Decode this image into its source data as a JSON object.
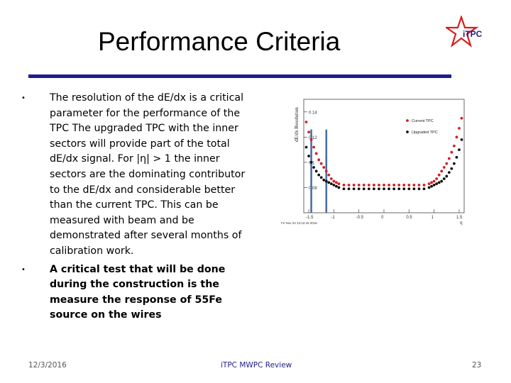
{
  "slide": {
    "title": "Performance Criteria",
    "logo_text": "iTPC",
    "bullets": [
      {
        "marker": "•",
        "text": "The resolution of the dE/dx is a critical parameter for the performance of the TPC The upgraded TPC with the inner sectors will provide part of the total dE/dx signal. For |η| > 1 the inner sectors are the dominating contributor to the dE/dx and considerable better than the current TPC. This can be measured with beam and be demonstrated after several months of calibration work."
      },
      {
        "marker": "•",
        "text": "A critical test that will be done during the construction is the measure the response of 55Fe source on the wires"
      }
    ],
    "footer": {
      "date": "12/3/2016",
      "center": "iTPC MWPC Review",
      "page": "23"
    }
  },
  "colors": {
    "accent": "#1f1f8c",
    "logo_red": "#d81e1e",
    "current_series": "#d11f1f",
    "upgraded_series": "#111111",
    "marker_line": "#4a6fa5"
  },
  "chart_data": {
    "type": "scatter",
    "title": "",
    "xlabel": "",
    "ylabel": "dE/dx Resolution",
    "xlim": [
      -1.6,
      1.6
    ],
    "ylim": [
      0.06,
      0.15
    ],
    "yticks": [
      "0.08",
      "0.1",
      "0.12",
      "0.14"
    ],
    "xticks": [
      "-1.5",
      "-1",
      "-0.5",
      "0",
      "0.5",
      "1",
      "1.5"
    ],
    "timestamp": "Fri Nov 24 13:12:18 2016",
    "corner_label": "η",
    "series": [
      {
        "name": "Current TPC",
        "color": "#d11f1f",
        "x": [
          -1.55,
          -1.5,
          -1.45,
          -1.4,
          -1.35,
          -1.3,
          -1.25,
          -1.2,
          -1.15,
          -1.1,
          -1.05,
          -1.0,
          -0.95,
          -0.9,
          -0.8,
          -0.7,
          -0.6,
          -0.5,
          -0.4,
          -0.3,
          -0.2,
          -0.1,
          0.0,
          0.1,
          0.2,
          0.3,
          0.4,
          0.5,
          0.6,
          0.7,
          0.8,
          0.9,
          0.95,
          1.0,
          1.05,
          1.1,
          1.15,
          1.2,
          1.25,
          1.3,
          1.35,
          1.4,
          1.45,
          1.5,
          1.55
        ],
        "y": [
          0.132,
          0.124,
          0.118,
          0.112,
          0.107,
          0.102,
          0.099,
          0.096,
          0.093,
          0.09,
          0.087,
          0.085,
          0.084,
          0.083,
          0.082,
          0.082,
          0.082,
          0.082,
          0.082,
          0.082,
          0.082,
          0.082,
          0.082,
          0.082,
          0.082,
          0.082,
          0.082,
          0.082,
          0.082,
          0.082,
          0.082,
          0.083,
          0.084,
          0.085,
          0.087,
          0.09,
          0.093,
          0.096,
          0.099,
          0.103,
          0.108,
          0.113,
          0.12,
          0.127,
          0.135
        ]
      },
      {
        "name": "Upgraded TPC",
        "color": "#111111",
        "x": [
          -1.55,
          -1.5,
          -1.45,
          -1.4,
          -1.35,
          -1.3,
          -1.25,
          -1.2,
          -1.15,
          -1.1,
          -1.05,
          -1.0,
          -0.95,
          -0.9,
          -0.8,
          -0.7,
          -0.6,
          -0.5,
          -0.4,
          -0.3,
          -0.2,
          -0.1,
          0.0,
          0.1,
          0.2,
          0.3,
          0.4,
          0.5,
          0.6,
          0.7,
          0.8,
          0.9,
          0.95,
          1.0,
          1.05,
          1.1,
          1.15,
          1.2,
          1.25,
          1.3,
          1.35,
          1.4,
          1.45,
          1.5,
          1.55
        ],
        "y": [
          0.112,
          0.105,
          0.1,
          0.096,
          0.093,
          0.09,
          0.088,
          0.086,
          0.085,
          0.084,
          0.083,
          0.082,
          0.081,
          0.08,
          0.079,
          0.079,
          0.079,
          0.079,
          0.079,
          0.079,
          0.079,
          0.079,
          0.079,
          0.079,
          0.079,
          0.079,
          0.079,
          0.079,
          0.079,
          0.079,
          0.079,
          0.08,
          0.081,
          0.082,
          0.083,
          0.084,
          0.085,
          0.087,
          0.089,
          0.092,
          0.095,
          0.099,
          0.104,
          0.11,
          0.118
        ]
      }
    ],
    "vertical_markers": [
      -1.45,
      -1.15
    ],
    "legend": "top-right"
  }
}
